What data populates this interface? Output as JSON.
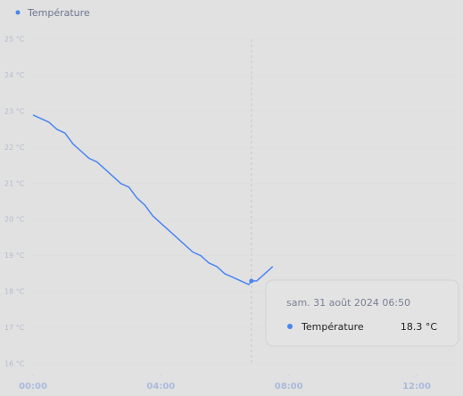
{
  "chart_data": {
    "type": "line",
    "x": [
      0,
      0.25,
      0.5,
      0.75,
      1,
      1.25,
      1.5,
      1.75,
      2,
      2.25,
      2.5,
      2.75,
      3,
      3.25,
      3.5,
      3.75,
      4,
      4.25,
      4.5,
      4.75,
      5,
      5.25,
      5.5,
      5.75,
      6,
      6.25,
      6.5,
      6.75,
      6.8333,
      7,
      7.25,
      7.5
    ],
    "series": [
      {
        "name": "Température",
        "color": "#4a86f0",
        "values": [
          22.9,
          22.8,
          22.7,
          22.5,
          22.4,
          22.1,
          21.9,
          21.7,
          21.6,
          21.4,
          21.2,
          21.0,
          20.9,
          20.6,
          20.4,
          20.1,
          19.9,
          19.7,
          19.5,
          19.3,
          19.1,
          19.0,
          18.8,
          18.7,
          18.5,
          18.4,
          18.3,
          18.2,
          18.3,
          18.3,
          18.5,
          18.7
        ]
      }
    ],
    "xlim": [
      0,
      12
    ],
    "xticks": [
      {
        "value": 0,
        "label": "00:00"
      },
      {
        "value": 4,
        "label": "04:00"
      },
      {
        "value": 8,
        "label": "08:00"
      },
      {
        "value": 12,
        "label": "12:00"
      }
    ],
    "ylim": [
      16,
      25
    ],
    "yticks": [
      {
        "value": 16,
        "label": "16 °C"
      },
      {
        "value": 17,
        "label": "17 °C"
      },
      {
        "value": 18,
        "label": "18 °C"
      },
      {
        "value": 19,
        "label": "19 °C"
      },
      {
        "value": 20,
        "label": "20 °C"
      },
      {
        "value": 21,
        "label": "21 °C"
      },
      {
        "value": 22,
        "label": "22 °C"
      },
      {
        "value": 23,
        "label": "23 °C"
      },
      {
        "value": 24,
        "label": "24 °C"
      },
      {
        "value": 25,
        "label": "25 °C"
      }
    ],
    "legend": "top-left",
    "tooltip": {
      "title": "sam. 31 août 2024 06:50",
      "value": 18.3,
      "value_label": "18.3 °C"
    }
  }
}
